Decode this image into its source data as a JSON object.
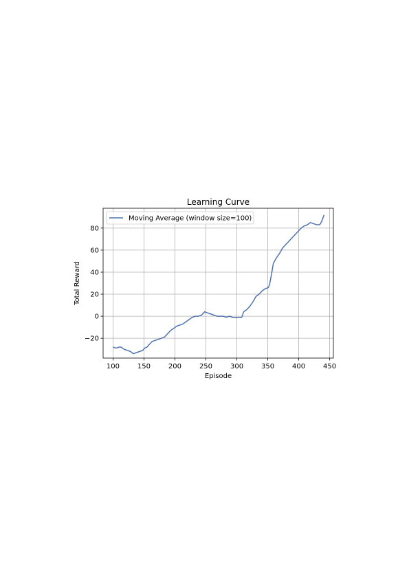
{
  "chart_data": {
    "type": "line",
    "title": "Learning Curve",
    "xlabel": "Episode",
    "ylabel": "Total Reward",
    "xlim": [
      84,
      456
    ],
    "ylim": [
      -38,
      98
    ],
    "xticks": [
      100,
      150,
      200,
      250,
      300,
      350,
      400,
      450
    ],
    "yticks": [
      -20,
      0,
      20,
      40,
      60,
      80
    ],
    "ytick_labels": [
      "−20",
      "0",
      "20",
      "40",
      "60",
      "80"
    ],
    "grid": true,
    "legend_position": "top-left",
    "series": [
      {
        "name": "Moving Average (window size=100)",
        "color": "#4c72b0",
        "x": [
          100,
          105,
          110,
          113,
          118,
          123,
          128,
          133,
          138,
          143,
          148,
          151,
          155,
          158,
          163,
          168,
          173,
          178,
          183,
          188,
          193,
          198,
          203,
          208,
          213,
          218,
          223,
          228,
          233,
          238,
          243,
          248,
          253,
          258,
          263,
          268,
          273,
          278,
          283,
          288,
          293,
          298,
          303,
          308,
          311,
          316,
          321,
          326,
          331,
          336,
          341,
          346,
          351,
          353,
          356,
          359,
          364,
          369,
          374,
          379,
          384,
          389,
          394,
          399,
          404,
          409,
          414,
          419,
          424,
          429,
          434,
          437,
          439,
          441
        ],
        "y": [
          -28,
          -29,
          -28,
          -28,
          -30,
          -31,
          -32,
          -34,
          -33,
          -32,
          -31,
          -29,
          -28,
          -26,
          -23,
          -22,
          -21,
          -20,
          -19,
          -16,
          -13,
          -11,
          -9,
          -8,
          -7,
          -5,
          -3,
          -1,
          0,
          0,
          1,
          4,
          3,
          2,
          1,
          0,
          0,
          0,
          -1,
          0,
          -1,
          -1,
          -1,
          -1,
          4,
          6,
          9,
          13,
          18,
          20,
          23,
          25,
          26,
          29,
          38,
          48,
          53,
          57,
          62,
          65,
          68,
          71,
          74,
          77,
          80,
          82,
          83,
          85,
          84,
          83,
          83,
          86,
          89,
          92
        ]
      }
    ]
  }
}
